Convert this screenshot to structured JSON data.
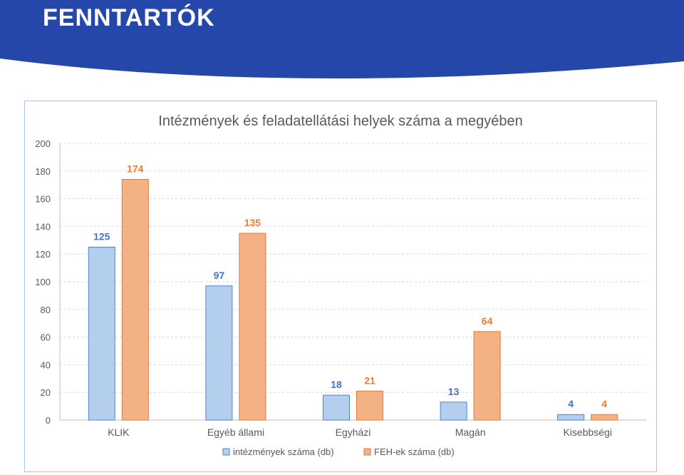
{
  "slide": {
    "title": "FENNTARTÓK"
  },
  "colors": {
    "banner": "#2447a9",
    "series1_fill": "#b4cfed",
    "series1_stroke": "#4f84c4",
    "series1_label": "#4472c4",
    "series2_fill": "#f4b183",
    "series2_stroke": "#e27a36",
    "series2_label": "#ed7d31"
  },
  "chart_data": {
    "type": "bar",
    "title": "Intézmények és feladatellátási helyek száma a megyében",
    "categories": [
      "KLIK",
      "Egyéb állami",
      "Egyházi",
      "Magán",
      "Kisebbségi"
    ],
    "series": [
      {
        "name": "intézmények száma (db)",
        "values": [
          125,
          97,
          18,
          13,
          4
        ]
      },
      {
        "name": "FEH-ek száma (db)",
        "values": [
          174,
          135,
          21,
          64,
          4
        ]
      }
    ],
    "ylim": [
      0,
      200
    ],
    "yticks": [
      "0",
      "20",
      "40",
      "60",
      "80",
      "100",
      "120",
      "140",
      "160",
      "180",
      "200"
    ],
    "grid": true,
    "data_labels": true,
    "legend_position": "bottom"
  }
}
